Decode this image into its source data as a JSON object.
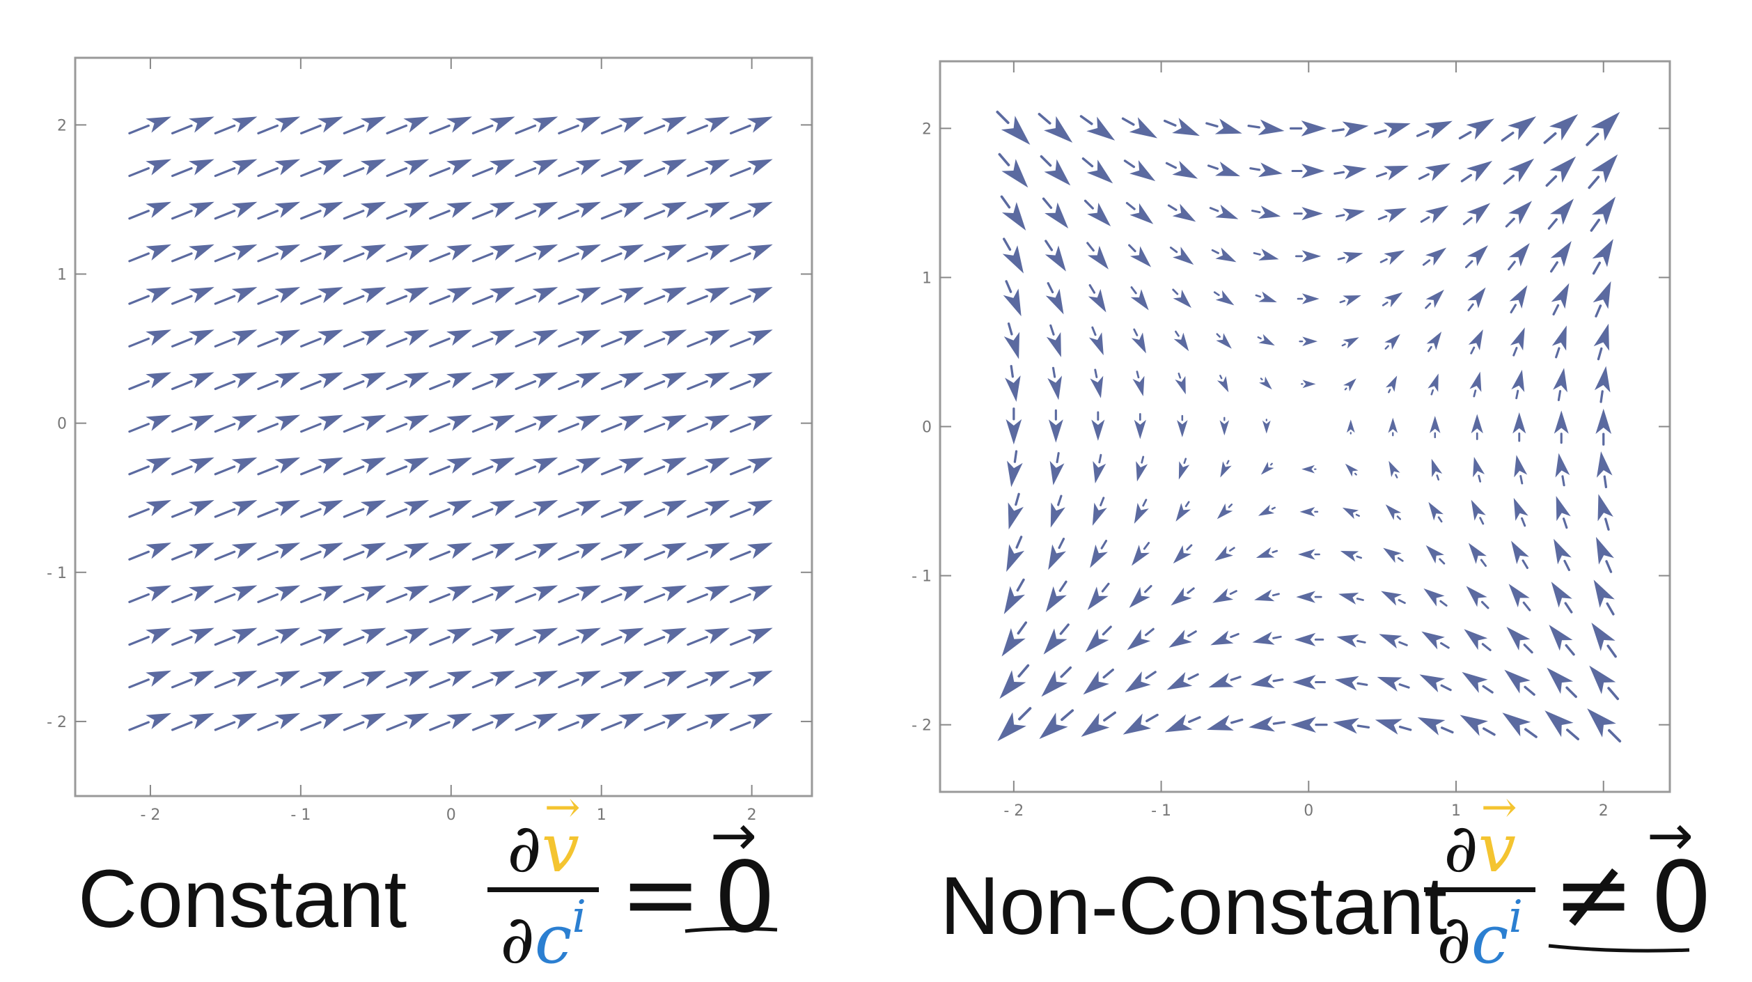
{
  "chart_data": [
    {
      "type": "vector-field",
      "title": "",
      "xlabel": "",
      "ylabel": "",
      "xlim": [
        -2.5,
        2.4
      ],
      "ylim": [
        -2.5,
        2.45
      ],
      "xticks": [
        -2,
        -1,
        0,
        1,
        2
      ],
      "yticks": [
        -2,
        -1,
        0,
        1,
        2
      ],
      "xtick_labels": [
        "- 2",
        "- 1",
        "0",
        "1",
        "2"
      ],
      "ytick_labels": [
        "- 2",
        "- 1",
        "0",
        "1",
        "2"
      ],
      "grid": false,
      "field": {
        "kind": "constant",
        "vx": 1.0,
        "vy": 0.4
      },
      "sample_x": [
        -2,
        2,
        15
      ],
      "sample_y": [
        -2,
        2,
        15
      ],
      "color": "#5b6aa0"
    },
    {
      "type": "vector-field",
      "title": "",
      "xlabel": "",
      "ylabel": "",
      "xlim": [
        -2.5,
        2.45
      ],
      "ylim": [
        -2.45,
        2.45
      ],
      "xticks": [
        -2,
        -1,
        0,
        1,
        2
      ],
      "yticks": [
        -2,
        -1,
        0,
        1,
        2
      ],
      "xtick_labels": [
        "- 2",
        "- 1",
        "0",
        "1",
        "2"
      ],
      "ytick_labels": [
        "- 2",
        "- 1",
        "0",
        "1",
        "2"
      ],
      "grid": false,
      "field": {
        "kind": "swirl",
        "vx": "y",
        "vy": "x"
      },
      "sample_x": [
        -2,
        2,
        15
      ],
      "sample_y": [
        -2,
        2,
        15
      ],
      "color": "#5b6aa0"
    }
  ],
  "captions": {
    "left": "Constant",
    "right": "Non-Constant"
  },
  "equations": {
    "partial": "∂",
    "v": "v",
    "c": "c",
    "i": "i",
    "equals": "=",
    "not_equals": "≠",
    "zero": "0",
    "vec_arrow": "→"
  },
  "colors": {
    "arrow": "#5b6aa0",
    "frame": "#999999",
    "v_highlight": "#f4c430",
    "c_highlight": "#2b7fd1"
  }
}
